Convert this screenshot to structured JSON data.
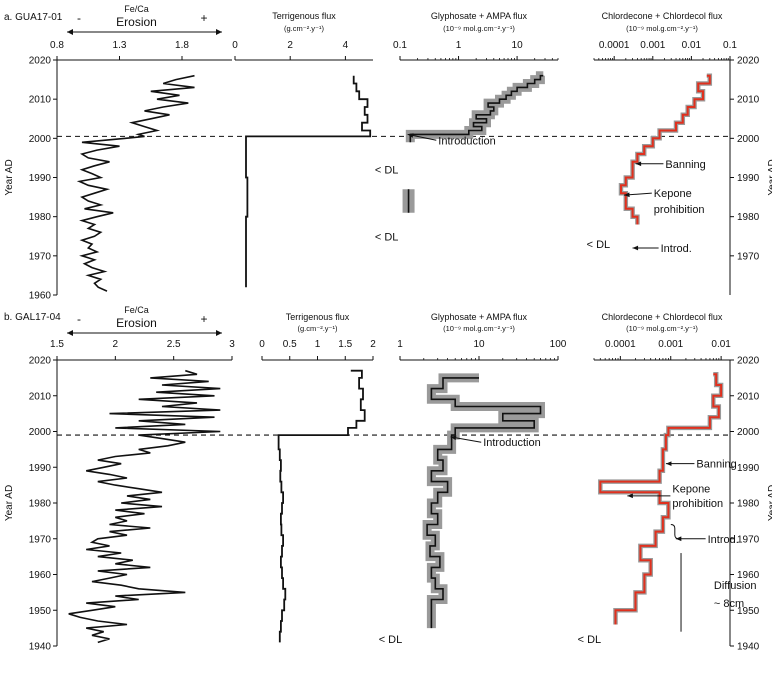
{
  "chart_data": [
    {
      "panel_label": "a. GUA17-01",
      "ylabel": "Year AD",
      "ylim": [
        1960,
        2020
      ],
      "yticks": [
        "1960",
        "1970",
        "1980",
        "1990",
        "2000",
        "2010",
        "2020"
      ],
      "boundary_year": 2000.5,
      "columns": [
        {
          "type": "line",
          "scale": "linear",
          "title": "Fe/Ca",
          "header": {
            "minus": "-",
            "plus": "+",
            "label": "Erosion"
          },
          "xlim": [
            0.8,
            2.2
          ],
          "xticks": [
            "0.8",
            "1.3",
            "1.8"
          ],
          "xtick_values": [
            0.8,
            1.3,
            1.8
          ],
          "series": [
            {
              "y": [
                1961,
                1962,
                1963,
                1964,
                1965,
                1966,
                1967,
                1968,
                1969,
                1970,
                1971,
                1972,
                1973,
                1974,
                1975,
                1976,
                1977,
                1978,
                1979,
                1980,
                1981,
                1982,
                1983,
                1984,
                1985,
                1986,
                1987,
                1988,
                1989,
                1990,
                1991,
                1992,
                1993,
                1994,
                1995,
                1996,
                1997,
                1998,
                1999,
                2000,
                2000.5,
                2001,
                2002,
                2003,
                2004,
                2005,
                2006,
                2007,
                2008,
                2009,
                2010,
                2011,
                2012,
                2013,
                2014,
                2015,
                2016
              ],
              "x": [
                1.2,
                1.13,
                1.1,
                1.15,
                1.05,
                1.18,
                1.08,
                1.02,
                1.1,
                1.0,
                1.12,
                1.05,
                1.08,
                1.0,
                1.1,
                1.15,
                1.05,
                1.1,
                1.0,
                1.12,
                1.25,
                1.02,
                1.15,
                1.05,
                1.0,
                1.1,
                1.2,
                1.05,
                0.98,
                1.15,
                1.08,
                1.0,
                1.1,
                1.22,
                1.05,
                1.0,
                1.12,
                1.3,
                1.0,
                1.35,
                1.5,
                1.45,
                1.6,
                1.5,
                1.4,
                1.55,
                1.7,
                1.5,
                1.65,
                1.85,
                1.6,
                1.78,
                1.55,
                1.9,
                1.65,
                1.75,
                1.9
              ]
            }
          ]
        },
        {
          "type": "step",
          "scale": "linear",
          "title": "Terrigenous flux",
          "unit": "(g.cm⁻².y⁻¹)",
          "xlim": [
            0,
            5
          ],
          "xticks": [
            "0",
            "2",
            "4"
          ],
          "xtick_values": [
            0,
            2,
            4
          ],
          "series": [
            {
              "y": [
                1962,
                1970,
                1980,
                1990,
                2000,
                2000.5,
                2002,
                2004,
                2006,
                2008,
                2010,
                2012,
                2014,
                2016
              ],
              "x": [
                0.4,
                0.4,
                0.45,
                0.4,
                0.4,
                4.9,
                4.6,
                4.8,
                4.7,
                4.8,
                4.5,
                4.4,
                4.3,
                4.3
              ]
            }
          ]
        },
        {
          "type": "step_band",
          "scale": "log",
          "title": "Glyphosate + AMPA flux",
          "unit": "(10⁻⁹ mol.g.cm⁻².y⁻¹)",
          "xlim": [
            0.1,
            50
          ],
          "xticks": [
            "0.1",
            "1",
            "10"
          ],
          "xtick_values": [
            0.1,
            1,
            10
          ],
          "series": [
            {
              "y": [
                1999,
                2000,
                2001,
                2002,
                2003,
                2004,
                2005,
                2006,
                2007,
                2008,
                2009,
                2010,
                2011,
                2012,
                2013,
                2014,
                2015,
                2016
              ],
              "x": [
                0.15,
                0.15,
                1.5,
                2.5,
                1.8,
                3.0,
                2.0,
                3.5,
                4.0,
                3.2,
                5.0,
                6.5,
                8.0,
                10.0,
                15.0,
                20.0,
                25.0,
                28.0
              ]
            }
          ],
          "isolated_band": {
            "x": 0.14,
            "y_top": 1987,
            "y_bottom": 1981
          },
          "annotations": [
            {
              "text": "Introduction",
              "x": 0.15,
              "y": 1999.5
            },
            {
              "text": "< DL",
              "x": 0.11,
              "y": 1992
            },
            {
              "text": "< DL",
              "x": 0.11,
              "y": 1975
            }
          ]
        },
        {
          "type": "step_red",
          "scale": "log",
          "title": "Chlordecone + Chlordecol flux",
          "unit": "(10⁻⁹ mol.g.cm⁻².y⁻¹)",
          "xlim": [
            3e-05,
            0.1
          ],
          "xticks": [
            "0.0001",
            "0.001",
            "0.01",
            "0.1"
          ],
          "xtick_values": [
            0.0001,
            0.001,
            0.01,
            0.1
          ],
          "y2ticks": [
            "1970",
            "1980",
            "1990",
            "2000",
            "2010",
            "2020"
          ],
          "series": [
            {
              "y": [
                1978,
                1980,
                1982,
                1984,
                1986,
                1988,
                1990,
                1992,
                1994,
                1996,
                1998,
                2000,
                2002,
                2004,
                2006,
                2008,
                2010,
                2012,
                2014,
                2016
              ],
              "x": [
                0.0004,
                0.0003,
                0.0002,
                0.0002,
                0.00015,
                0.0002,
                0.0003,
                0.0003,
                0.0004,
                0.0006,
                0.001,
                0.0015,
                0.004,
                0.006,
                0.008,
                0.012,
                0.02,
                0.015,
                0.03,
                0.025
              ]
            }
          ],
          "annotations": [
            {
              "text": "Banning",
              "x": 0.0004,
              "y": 1993.5
            },
            {
              "text": "Kepone",
              "x": 0.0002,
              "y": 1986
            },
            {
              "text": "prohibition",
              "x": 0.0002,
              "y": 1982
            },
            {
              "text": "< DL",
              "x": 0.0001,
              "y": 1973
            },
            {
              "text": "Introd.",
              "x": 0.0003,
              "y": 1972
            }
          ]
        }
      ]
    },
    {
      "panel_label": "b. GAL17-04",
      "ylabel": "Year AD",
      "ylim": [
        1940,
        2020
      ],
      "yticks": [
        "1940",
        "1950",
        "1960",
        "1970",
        "1980",
        "1990",
        "2000",
        "2010",
        "2020"
      ],
      "boundary_year": 1999,
      "columns": [
        {
          "type": "line",
          "scale": "linear",
          "title": "Fe/Ca",
          "header": {
            "minus": "-",
            "plus": "+",
            "label": "Erosion"
          },
          "xlim": [
            1.5,
            3.0
          ],
          "xticks": [
            "1.5",
            "2",
            "2.5",
            "3"
          ],
          "xtick_values": [
            1.5,
            2,
            2.5,
            3
          ],
          "series": [
            {
              "y": [
                1941,
                1942,
                1943,
                1944,
                1945,
                1946,
                1947,
                1948,
                1949,
                1950,
                1951,
                1952,
                1953,
                1954,
                1955,
                1956,
                1957,
                1958,
                1959,
                1960,
                1961,
                1962,
                1963,
                1964,
                1965,
                1966,
                1967,
                1968,
                1969,
                1970,
                1971,
                1972,
                1973,
                1974,
                1975,
                1976,
                1977,
                1978,
                1979,
                1980,
                1981,
                1982,
                1983,
                1984,
                1985,
                1986,
                1987,
                1988,
                1989,
                1990,
                1991,
                1992,
                1993,
                1994,
                1995,
                1996,
                1997,
                1998,
                1999,
                2000,
                2001,
                2002,
                2003,
                2004,
                2005,
                2006,
                2007,
                2008,
                2009,
                2010,
                2011,
                2012,
                2013,
                2014,
                2015,
                2016,
                2017
              ],
              "x": [
                1.85,
                1.95,
                1.8,
                1.9,
                1.75,
                2.1,
                1.85,
                1.7,
                1.6,
                1.8,
                2.0,
                1.75,
                2.2,
                2.0,
                2.6,
                2.2,
                2.05,
                1.8,
                1.95,
                2.1,
                1.85,
                2.3,
                2.0,
                2.15,
                1.85,
                2.05,
                1.75,
                1.95,
                1.8,
                1.85,
                2.1,
                1.95,
                2.3,
                1.95,
                2.1,
                2.0,
                2.25,
                2.0,
                2.4,
                2.05,
                2.3,
                2.1,
                2.4,
                2.2,
                2.0,
                1.85,
                2.1,
                1.95,
                1.75,
                1.9,
                2.05,
                1.85,
                2.0,
                2.3,
                2.2,
                2.45,
                2.6,
                2.4,
                2.2,
                2.9,
                2.0,
                2.6,
                2.2,
                2.85,
                1.95,
                2.9,
                2.4,
                2.7,
                2.2,
                2.85,
                2.35,
                2.9,
                2.4,
                2.8,
                2.3,
                2.7,
                2.6
              ]
            }
          ]
        },
        {
          "type": "step",
          "scale": "linear",
          "title": "Terrigenous flux",
          "unit": "(g.cm⁻².y⁻¹)",
          "xlim": [
            0,
            2
          ],
          "xticks": [
            "0",
            "0.5",
            "1",
            "1.5",
            "2"
          ],
          "xtick_values": [
            0,
            0.5,
            1,
            1.5,
            2
          ],
          "series": [
            {
              "y": [
                1941,
                1944,
                1947,
                1950,
                1953,
                1956,
                1959,
                1962,
                1965,
                1968,
                1971,
                1974,
                1977,
                1980,
                1983,
                1986,
                1989,
                1992,
                1995,
                1998,
                1999,
                2001,
                2003,
                2006,
                2009,
                2012,
                2015,
                2017
              ],
              "x": [
                0.32,
                0.34,
                0.36,
                0.4,
                0.42,
                0.38,
                0.36,
                0.34,
                0.36,
                0.38,
                0.35,
                0.34,
                0.36,
                0.38,
                0.35,
                0.33,
                0.34,
                0.32,
                0.3,
                0.3,
                1.55,
                1.7,
                1.85,
                1.78,
                1.82,
                1.75,
                1.8,
                1.6
              ]
            }
          ]
        },
        {
          "type": "step_band",
          "scale": "log",
          "title": "Glyphosate + AMPA flux",
          "unit": "(10⁻⁹ mol.g.cm⁻².y⁻¹)",
          "xlim": [
            1,
            100
          ],
          "xticks": [
            "1",
            "10",
            "100"
          ],
          "xtick_values": [
            1,
            10,
            100
          ],
          "series": [
            {
              "y": [
                1945,
                1950,
                1953,
                1956,
                1959,
                1962,
                1965,
                1968,
                1971,
                1974,
                1977,
                1980,
                1983,
                1986,
                1989,
                1992,
                1995,
                1999,
                2001,
                2003,
                2005,
                2007,
                2009,
                2012,
                2015
              ],
              "x": [
                2.5,
                2.5,
                3.5,
                2.8,
                2.5,
                3.2,
                2.4,
                2.8,
                2.2,
                3.0,
                2.5,
                3.0,
                4.0,
                2.5,
                3.5,
                3.0,
                4.5,
                5.0,
                50.0,
                20.0,
                60.0,
                5.0,
                2.5,
                3.5,
                10.0
              ]
            }
          ],
          "annotations": [
            {
              "text": "Introduction",
              "x": 5.0,
              "y": 1997
            },
            {
              "text": "< DL",
              "x": 1.2,
              "y": 1942
            }
          ]
        },
        {
          "type": "step_red",
          "scale": "log",
          "title": "Chlordecone + Chlordecol flux",
          "unit": "(10⁻⁹ mol.g.cm⁻².y⁻¹)",
          "xlim": [
            3e-05,
            0.015
          ],
          "xticks": [
            "0.0001",
            "0.001",
            "0.01"
          ],
          "xtick_values": [
            0.0001,
            0.001,
            0.01
          ],
          "y2ticks": [
            "1940",
            "1950",
            "1960",
            "1970",
            "1980",
            "1990",
            "2000",
            "2010",
            "2020"
          ],
          "series": [
            {
              "y": [
                1946,
                1950,
                1955,
                1960,
                1964,
                1968,
                1972,
                1976,
                1980,
                1983,
                1986,
                1989,
                1992,
                1995,
                1999,
                2001,
                2004,
                2007,
                2010,
                2013,
                2016
              ],
              "x": [
                8e-05,
                0.0002,
                0.0003,
                0.0004,
                0.00025,
                0.0005,
                0.0007,
                0.0009,
                0.0006,
                4e-05,
                0.0006,
                0.0007,
                0.0007,
                0.0008,
                0.0009,
                0.006,
                0.009,
                0.007,
                0.01,
                0.008,
                0.007
              ]
            }
          ],
          "annotations": [
            {
              "text": "Banning",
              "x": 0.0009,
              "y": 1991
            },
            {
              "text": "Kepone",
              "x": 0.0003,
              "y": 1984
            },
            {
              "text": "prohibition",
              "x": 0.0003,
              "y": 1980
            },
            {
              "text": "Introd.",
              "x": 0.0015,
              "y": 1970
            },
            {
              "text": "Diffusion",
              "x": 0.002,
              "y": 1957
            },
            {
              "text": "~ 8cm",
              "x": 0.002,
              "y": 1952
            },
            {
              "text": "< DL",
              "x": 5e-05,
              "y": 1942
            }
          ]
        }
      ]
    }
  ]
}
